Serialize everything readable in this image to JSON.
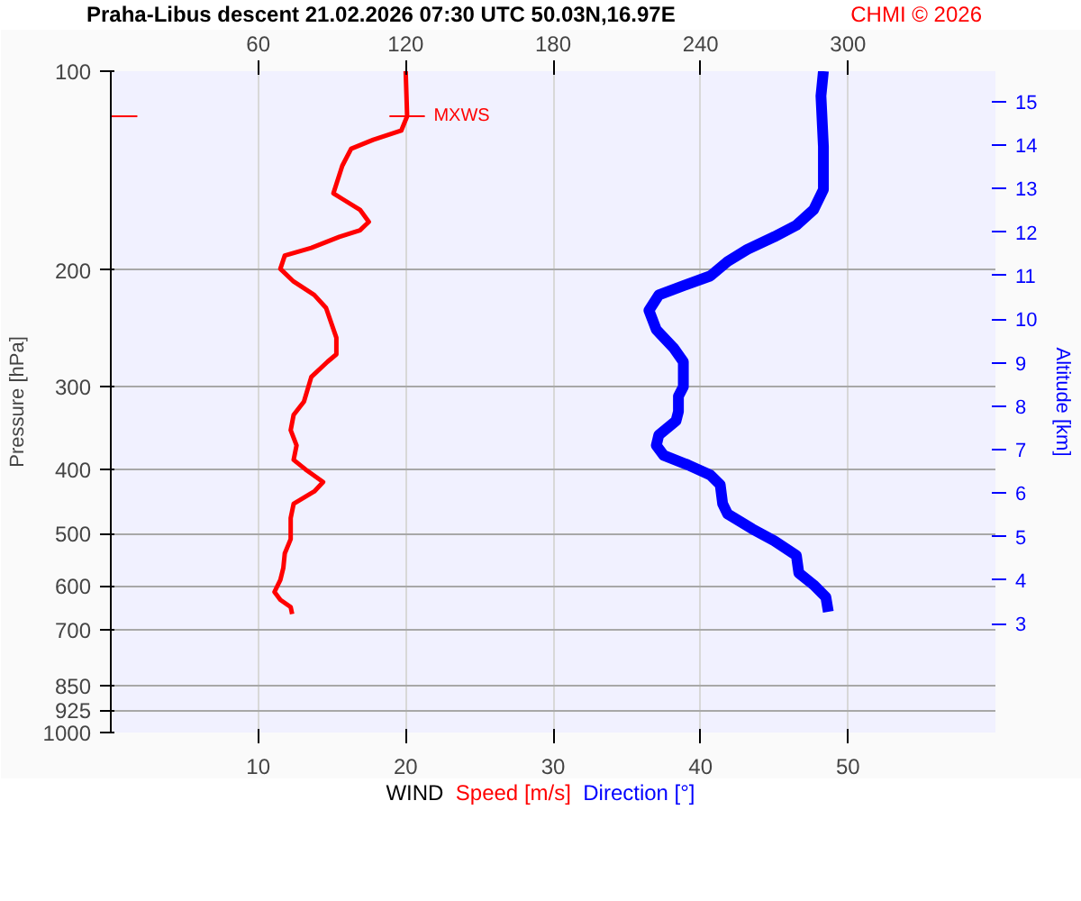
{
  "chart_data": {
    "type": "line",
    "orientation": "horizontal",
    "title": "Praha-Libus   descent   21.02.2026 07:30 UTC   50.03N,16.97E",
    "xlabel": "WIND",
    "ylabel": "Pressure [hPa]",
    "y2label": "Altitude [km]",
    "annotations": [
      "CHMI © 2026",
      "MXWS"
    ],
    "log": "y",
    "grid": true,
    "legend": "bottom",
    "line_style": "solid",
    "xlim": [
      0,
      60
    ],
    "xticks": [
      10,
      20,
      30,
      40,
      50
    ],
    "x2lim": [
      0,
      360
    ],
    "x2ticks": [
      60,
      120,
      180,
      240,
      300
    ],
    "ylim": [
      1000,
      100
    ],
    "yticks": [
      100,
      200,
      300,
      400,
      500,
      600,
      700,
      850,
      925,
      1000
    ],
    "y2lim": [
      0.5,
      15.7
    ],
    "y2ticks": [
      3,
      4,
      5,
      6,
      7,
      8,
      9,
      10,
      11,
      12,
      13,
      14,
      15
    ],
    "series": [
      {
        "name": "Speed [m/s]",
        "color": "#ff0000",
        "x": [
          100,
          117,
          123,
          127,
          131,
          139,
          153,
          156,
          162,
          169,
          174,
          178,
          185,
          190,
          199,
          208,
          218,
          228,
          253,
          268,
          275,
          290,
          316,
          331,
          349,
          368,
          387,
          400,
          418,
          432,
          451,
          474,
          510,
          536,
          564,
          588,
          613,
          630,
          646,
          662
        ],
        "values": [
          20.0,
          20.1,
          19.7,
          17.8,
          16.3,
          15.7,
          15.1,
          15.7,
          16.9,
          17.5,
          16.9,
          15.5,
          13.6,
          11.8,
          11.5,
          12.4,
          13.8,
          14.6,
          15.3,
          15.3,
          14.7,
          13.6,
          13.1,
          12.4,
          12.2,
          12.6,
          12.4,
          13.2,
          14.4,
          13.8,
          12.4,
          12.2,
          12.2,
          11.8,
          11.7,
          11.5,
          11.1,
          11.5,
          12.2,
          12.3
        ]
      },
      {
        "name": "Direction [°]",
        "color": "#0000ff",
        "axis": "x2",
        "x": [
          100,
          109,
          130,
          151,
          162,
          171,
          178,
          186,
          194,
          204,
          211,
          218,
          230,
          246,
          262,
          275,
          300,
          310,
          327,
          338,
          355,
          368,
          381,
          394,
          408,
          422,
          451,
          467,
          492,
          513,
          540,
          574,
          598,
          624,
          657
        ],
        "values": [
          290,
          289,
          290,
          290,
          286,
          279,
          270,
          259,
          251,
          244,
          233,
          223,
          219,
          222,
          229,
          233,
          233,
          231,
          231,
          230,
          223,
          222,
          225,
          235,
          244,
          248,
          249,
          251,
          261,
          270,
          279,
          280,
          286,
          291,
          292
        ]
      }
    ]
  }
}
